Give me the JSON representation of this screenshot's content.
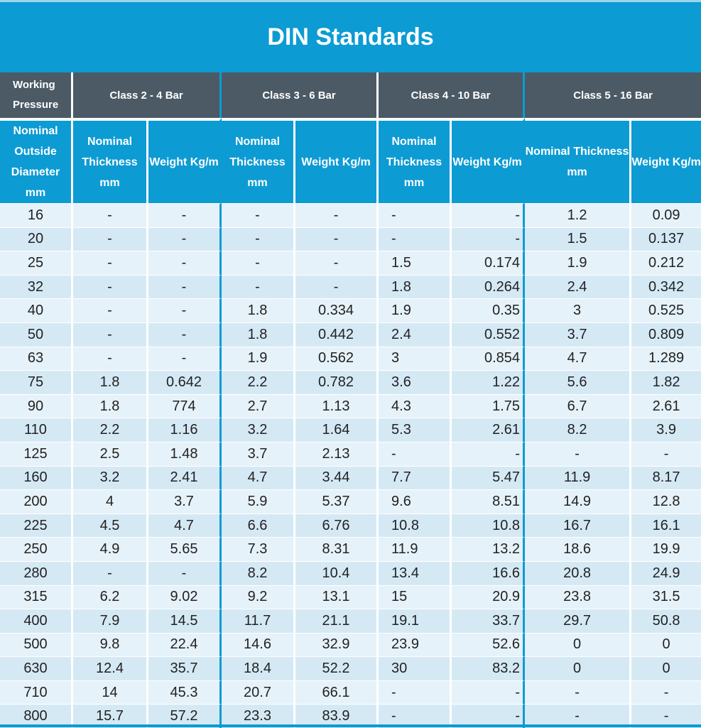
{
  "title": "DIN Standards",
  "header_row1": {
    "label": "Working Pressure",
    "classes": [
      "Class 2 - 4 Bar",
      "Class 3 - 6 Bar",
      "Class 4 - 10 Bar",
      "Class 5 - 16 Bar"
    ]
  },
  "header_row2": [
    "Nominal Outside Diameter mm",
    "Nominal Thickness mm",
    "Weight Kg/m",
    "Nominal Thickness mm",
    "Weight Kg/m",
    "Nominal Thickness mm",
    "Weight Kg/m",
    "Nominal Thickness mm",
    "Weight Kg/m"
  ],
  "rows": [
    [
      "16",
      "-",
      "-",
      "-",
      "-",
      "-",
      "-",
      "1.2",
      "0.09"
    ],
    [
      "20",
      "-",
      "-",
      "-",
      "-",
      "-",
      "-",
      "1.5",
      "0.137"
    ],
    [
      "25",
      "-",
      "-",
      "-",
      "-",
      "1.5",
      "0.174",
      "1.9",
      "0.212"
    ],
    [
      "32",
      "-",
      "-",
      "-",
      "-",
      "1.8",
      "0.264",
      "2.4",
      "0.342"
    ],
    [
      "40",
      "-",
      "-",
      "1.8",
      "0.334",
      "1.9",
      "0.35",
      "3",
      "0.525"
    ],
    [
      "50",
      "-",
      "-",
      "1.8",
      "0.442",
      "2.4",
      "0.552",
      "3.7",
      "0.809"
    ],
    [
      "63",
      "-",
      "-",
      "1.9",
      "0.562",
      "3",
      "0.854",
      "4.7",
      "1.289"
    ],
    [
      "75",
      "1.8",
      "0.642",
      "2.2",
      "0.782",
      "3.6",
      "1.22",
      "5.6",
      "1.82"
    ],
    [
      "90",
      "1.8",
      "774",
      "2.7",
      "1.13",
      "4.3",
      "1.75",
      "6.7",
      "2.61"
    ],
    [
      "110",
      "2.2",
      "1.16",
      "3.2",
      "1.64",
      "5.3",
      "2.61",
      "8.2",
      "3.9"
    ],
    [
      "125",
      "2.5",
      "1.48",
      "3.7",
      "2.13",
      "-",
      "-",
      "-",
      "-"
    ],
    [
      "160",
      "3.2",
      "2.41",
      "4.7",
      "3.44",
      "7.7",
      "5.47",
      "11.9",
      "8.17"
    ],
    [
      "200",
      "4",
      "3.7",
      "5.9",
      "5.37",
      "9.6",
      "8.51",
      "14.9",
      "12.8"
    ],
    [
      "225",
      "4.5",
      "4.7",
      "6.6",
      "6.76",
      "10.8",
      "10.8",
      "16.7",
      "16.1"
    ],
    [
      "250",
      "4.9",
      "5.65",
      "7.3",
      "8.31",
      "11.9",
      "13.2",
      "18.6",
      "19.9"
    ],
    [
      "280",
      "-",
      "-",
      "8.2",
      "10.4",
      "13.4",
      "16.6",
      "20.8",
      "24.9"
    ],
    [
      "315",
      "6.2",
      "9.02",
      "9.2",
      "13.1",
      "15",
      "20.9",
      "23.8",
      "31.5"
    ],
    [
      "400",
      "7.9",
      "14.5",
      "11.7",
      "21.1",
      "19.1",
      "33.7",
      "29.7",
      "50.8"
    ],
    [
      "500",
      "9.8",
      "22.4",
      "14.6",
      "32.9",
      "23.9",
      "52.6",
      "0",
      "0"
    ],
    [
      "630",
      "12.4",
      "35.7",
      "18.4",
      "52.2",
      "30",
      "83.2",
      "0",
      "0"
    ],
    [
      "710",
      "14",
      "45.3",
      "20.7",
      "66.1",
      "-",
      "-",
      "-",
      "-"
    ],
    [
      "800",
      "15.7",
      "57.2",
      "23.3",
      "83.9",
      "-",
      "-",
      "-",
      "-"
    ]
  ],
  "colors": {
    "title_bg": "#0d9bd3",
    "header_dark": "#4b5a65",
    "row_light": "#e6f2f9",
    "row_alt": "#d5e9f5"
  }
}
